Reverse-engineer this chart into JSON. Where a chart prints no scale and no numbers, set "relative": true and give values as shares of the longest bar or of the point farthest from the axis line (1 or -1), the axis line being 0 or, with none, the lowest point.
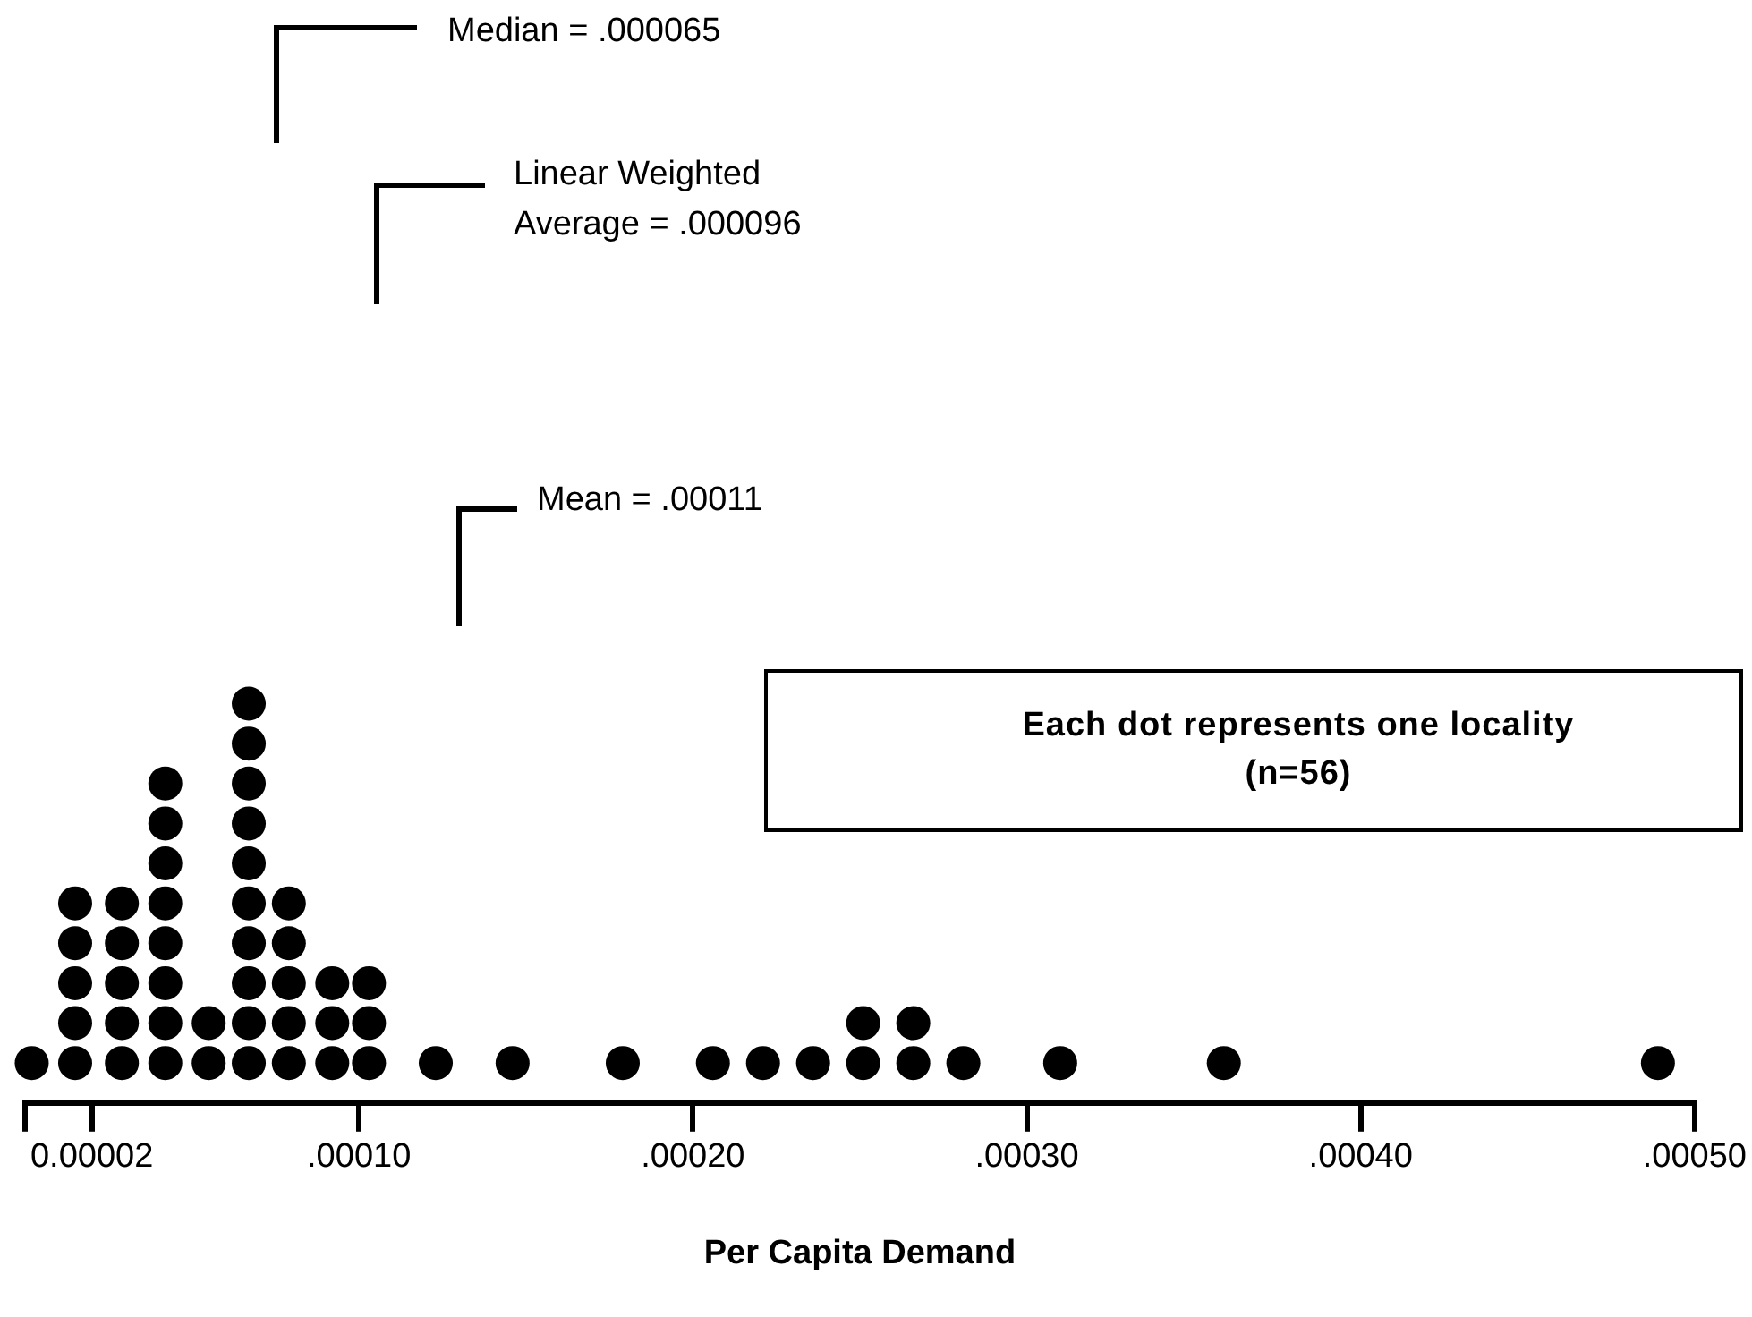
{
  "chart_data": {
    "type": "scatter",
    "xlabel": "Per Capita Demand",
    "marker": "circle",
    "tick_labels": "x",
    "grid": false,
    "legend": false,
    "relative": true,
    "xlim": [
      0,
      0.0005
    ],
    "xticks": [
      {
        "value": 0,
        "label": null
      },
      {
        "value": 2e-05,
        "label": "0.00002"
      },
      {
        "value": 0.0001,
        "label": ".00010"
      },
      {
        "value": 0.0002,
        "label": ".00020"
      },
      {
        "value": 0.0003,
        "label": ".00030"
      },
      {
        "value": 0.0004,
        "label": ".00040"
      },
      {
        "value": 0.0005,
        "label": ".00050"
      }
    ],
    "series": [
      {
        "color": "#000000",
        "x": [
          2e-06,
          1.5e-05,
          1.5e-05,
          1.5e-05,
          1.5e-05,
          1.5e-05,
          2.9e-05,
          2.9e-05,
          2.9e-05,
          2.9e-05,
          2.9e-05,
          4.2e-05,
          4.2e-05,
          4.2e-05,
          4.2e-05,
          4.2e-05,
          4.2e-05,
          4.2e-05,
          4.2e-05,
          5.5e-05,
          5.5e-05,
          6.7e-05,
          6.7e-05,
          6.7e-05,
          6.7e-05,
          6.7e-05,
          6.7e-05,
          6.7e-05,
          6.7e-05,
          6.7e-05,
          6.7e-05,
          7.9e-05,
          7.9e-05,
          7.9e-05,
          7.9e-05,
          7.9e-05,
          9.2e-05,
          9.2e-05,
          9.2e-05,
          0.000103,
          0.000103,
          0.000103,
          0.000123,
          0.000146,
          0.000179,
          0.000206,
          0.000221,
          0.000236,
          0.000251,
          0.000251,
          0.000266,
          0.000266,
          0.000281,
          0.00031,
          0.000359,
          0.000489
        ],
        "values": [
          0.1,
          0.1,
          0.2,
          0.3,
          0.4,
          0.5,
          0.1,
          0.2,
          0.3,
          0.4,
          0.5,
          0.1,
          0.2,
          0.3,
          0.4,
          0.5,
          0.6,
          0.7,
          0.8,
          0.1,
          0.2,
          0.1,
          0.2,
          0.3,
          0.4,
          0.5,
          0.6,
          0.7,
          0.8,
          0.9,
          1,
          0.1,
          0.2,
          0.3,
          0.4,
          0.5,
          0.1,
          0.2,
          0.3,
          0.1,
          0.2,
          0.3,
          0.1,
          0.1,
          0.1,
          0.1,
          0.1,
          0.1,
          0.1,
          0.2,
          0.1,
          0.2,
          0.1,
          0.1,
          0.1,
          0.1
        ]
      }
    ],
    "annotations": [
      "Median = .000065",
      "Linear Weighted\nAverage = .000096",
      "Mean = .00011",
      "Each dot represents one locality\n(n=56)"
    ]
  }
}
